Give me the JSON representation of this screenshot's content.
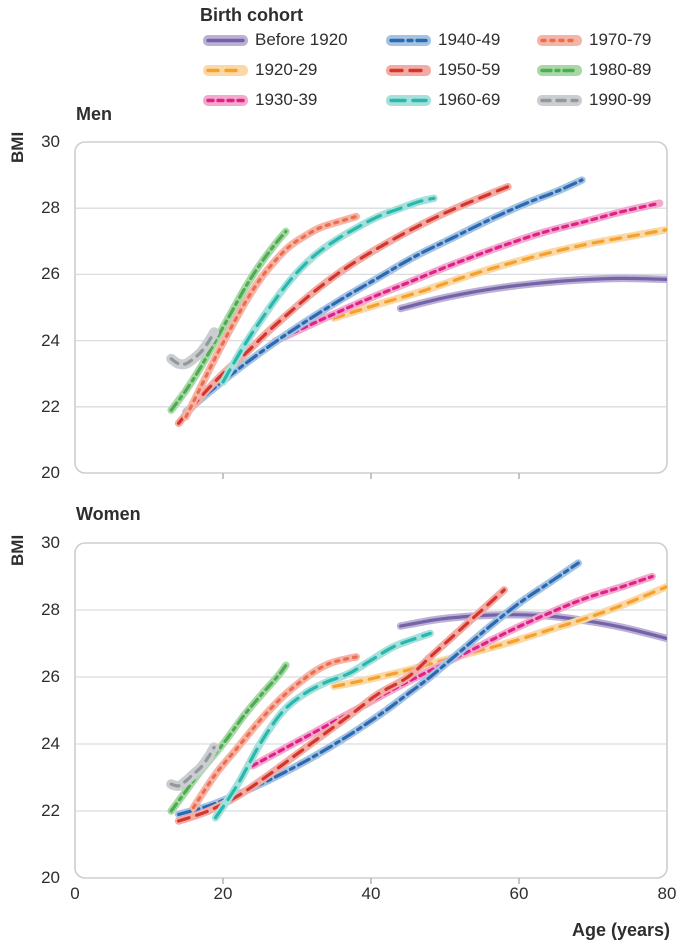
{
  "legend": {
    "title": "Birth cohort",
    "items": [
      {
        "label": "Before 1920",
        "line_color": "#7563A8",
        "band_color": "#BCB0D6",
        "dash": ""
      },
      {
        "label": "1920-29",
        "line_color": "#F6A12D",
        "band_color": "#FAD9A6",
        "dash": "10 8"
      },
      {
        "label": "1930-39",
        "line_color": "#E0218A",
        "band_color": "#F3A9CC",
        "dash": "5 5"
      },
      {
        "label": "1940-49",
        "line_color": "#2D68B1",
        "band_color": "#A3C3E2",
        "dash": "12 5 4 5"
      },
      {
        "label": "1950-59",
        "line_color": "#D7342C",
        "band_color": "#F0ACA5",
        "dash": "11 8"
      },
      {
        "label": "1960-69",
        "line_color": "#28B8AE",
        "band_color": "#A5E0DB",
        "dash": "14 8"
      },
      {
        "label": "1970-79",
        "line_color": "#EE6C4E",
        "band_color": "#F6B4A6",
        "dash": "3 6"
      },
      {
        "label": "1980-89",
        "line_color": "#4EAD50",
        "band_color": "#A9D8A8",
        "dash": "9 5 3 5"
      },
      {
        "label": "1990-99",
        "line_color": "#93989D",
        "band_color": "#CBCED1",
        "dash": "8 7"
      }
    ]
  },
  "axes": {
    "x_label": "Age (years)",
    "y_label": "BMI"
  },
  "chart_data": [
    {
      "type": "line",
      "title": "Men",
      "xlabel": "Age (years)",
      "ylabel": "BMI",
      "xlim": [
        0,
        80
      ],
      "ylim": [
        20,
        30
      ],
      "x_ticks": [
        "0",
        "20",
        "40",
        "60",
        "80"
      ],
      "y_ticks": [
        "30",
        "28",
        "26",
        "24",
        "22",
        "20"
      ],
      "grid": "horizontal",
      "legend_position": "top",
      "series": [
        {
          "name": "Before 1920",
          "points": [
            [
              44,
              24.97
            ],
            [
              50,
              25.3
            ],
            [
              56,
              25.55
            ],
            [
              62,
              25.72
            ],
            [
              68,
              25.83
            ],
            [
              74,
              25.88
            ],
            [
              80,
              25.85
            ]
          ]
        },
        {
          "name": "1920-29",
          "points": [
            [
              35,
              24.68
            ],
            [
              41,
              25.1
            ],
            [
              47,
              25.5
            ],
            [
              53,
              25.95
            ],
            [
              59,
              26.35
            ],
            [
              65,
              26.7
            ],
            [
              70,
              26.95
            ],
            [
              75,
              27.15
            ],
            [
              80,
              27.35
            ]
          ]
        },
        {
          "name": "1930-39",
          "points": [
            [
              27,
              23.98
            ],
            [
              33,
              24.6
            ],
            [
              39,
              25.2
            ],
            [
              45,
              25.75
            ],
            [
              51,
              26.3
            ],
            [
              57,
              26.8
            ],
            [
              63,
              27.25
            ],
            [
              69,
              27.6
            ],
            [
              74,
              27.9
            ],
            [
              79,
              28.15
            ]
          ]
        },
        {
          "name": "1940-49",
          "points": [
            [
              15,
              21.85
            ],
            [
              19,
              22.6
            ],
            [
              23,
              23.3
            ],
            [
              27,
              23.95
            ],
            [
              31,
              24.55
            ],
            [
              36,
              25.25
            ],
            [
              41,
              25.9
            ],
            [
              46,
              26.55
            ],
            [
              51,
              27.1
            ],
            [
              56,
              27.65
            ],
            [
              61,
              28.15
            ],
            [
              65,
              28.5
            ],
            [
              68.5,
              28.85
            ]
          ]
        },
        {
          "name": "1950-59",
          "points": [
            [
              14,
              21.5
            ],
            [
              17,
              22.3
            ],
            [
              20,
              23.0
            ],
            [
              23,
              23.6
            ],
            [
              26,
              24.25
            ],
            [
              29,
              24.85
            ],
            [
              33,
              25.6
            ],
            [
              37,
              26.25
            ],
            [
              41,
              26.8
            ],
            [
              45,
              27.3
            ],
            [
              49,
              27.75
            ],
            [
              53,
              28.15
            ],
            [
              58.5,
              28.65
            ]
          ]
        },
        {
          "name": "1960-69",
          "points": [
            [
              20,
              22.75
            ],
            [
              23,
              23.9
            ],
            [
              26,
              24.9
            ],
            [
              29,
              25.8
            ],
            [
              32,
              26.5
            ],
            [
              35,
              27.0
            ],
            [
              38,
              27.4
            ],
            [
              41,
              27.75
            ],
            [
              44,
              28.0
            ],
            [
              46.5,
              28.2
            ],
            [
              48.5,
              28.3
            ]
          ]
        },
        {
          "name": "1970-79",
          "points": [
            [
              15,
              21.7
            ],
            [
              17,
              22.6
            ],
            [
              19,
              23.5
            ],
            [
              21,
              24.35
            ],
            [
              23,
              25.15
            ],
            [
              25,
              25.85
            ],
            [
              27,
              26.4
            ],
            [
              29,
              26.85
            ],
            [
              31,
              27.15
            ],
            [
              33,
              27.4
            ],
            [
              35,
              27.55
            ],
            [
              38,
              27.75
            ]
          ]
        },
        {
          "name": "1980-89",
          "points": [
            [
              13,
              21.9
            ],
            [
              15,
              22.5
            ],
            [
              17,
              23.2
            ],
            [
              19,
              24.0
            ],
            [
              21,
              24.8
            ],
            [
              23,
              25.6
            ],
            [
              25,
              26.3
            ],
            [
              27,
              26.9
            ],
            [
              28.5,
              27.3
            ]
          ]
        },
        {
          "name": "1990-99",
          "points": [
            [
              13,
              23.45
            ],
            [
              14,
              23.3
            ],
            [
              15,
              23.3
            ],
            [
              16,
              23.45
            ],
            [
              17,
              23.65
            ],
            [
              18,
              23.95
            ],
            [
              18.8,
              24.25
            ]
          ]
        }
      ]
    },
    {
      "type": "line",
      "title": "Women",
      "xlabel": "Age (years)",
      "ylabel": "BMI",
      "xlim": [
        0,
        80
      ],
      "ylim": [
        20,
        30
      ],
      "x_ticks": [
        "0",
        "20",
        "40",
        "60",
        "80"
      ],
      "y_ticks": [
        "30",
        "28",
        "26",
        "24",
        "22",
        "20"
      ],
      "grid": "horizontal",
      "legend_position": "top",
      "series": [
        {
          "name": "Before 1920",
          "points": [
            [
              44,
              27.52
            ],
            [
              49,
              27.72
            ],
            [
              54,
              27.82
            ],
            [
              59,
              27.86
            ],
            [
              64,
              27.82
            ],
            [
              69,
              27.68
            ],
            [
              74,
              27.48
            ],
            [
              80,
              27.15
            ]
          ]
        },
        {
          "name": "1920-29",
          "points": [
            [
              35,
              25.72
            ],
            [
              39,
              25.9
            ],
            [
              44,
              26.15
            ],
            [
              49,
              26.45
            ],
            [
              54,
              26.75
            ],
            [
              59,
              27.05
            ],
            [
              64,
              27.4
            ],
            [
              69,
              27.75
            ],
            [
              74,
              28.15
            ],
            [
              80,
              28.7
            ]
          ]
        },
        {
          "name": "1930-39",
          "points": [
            [
              24,
              23.35
            ],
            [
              29,
              23.95
            ],
            [
              34,
              24.55
            ],
            [
              39,
              25.15
            ],
            [
              44,
              25.75
            ],
            [
              49,
              26.3
            ],
            [
              54,
              26.85
            ],
            [
              59,
              27.4
            ],
            [
              64,
              27.9
            ],
            [
              69,
              28.35
            ],
            [
              74,
              28.7
            ],
            [
              78,
              29.0
            ]
          ]
        },
        {
          "name": "1940-49",
          "points": [
            [
              14,
              21.9
            ],
            [
              18,
              22.15
            ],
            [
              22,
              22.5
            ],
            [
              26,
              22.9
            ],
            [
              30,
              23.35
            ],
            [
              34,
              23.85
            ],
            [
              38,
              24.4
            ],
            [
              42,
              25.0
            ],
            [
              45,
              25.5
            ],
            [
              48,
              26.0
            ],
            [
              52,
              26.75
            ],
            [
              56,
              27.5
            ],
            [
              60,
              28.2
            ],
            [
              64,
              28.8
            ],
            [
              68,
              29.4
            ]
          ]
        },
        {
          "name": "1950-59",
          "points": [
            [
              14,
              21.7
            ],
            [
              18,
              22.0
            ],
            [
              22,
              22.45
            ],
            [
              26,
              23.05
            ],
            [
              30,
              23.7
            ],
            [
              34,
              24.35
            ],
            [
              38,
              25.0
            ],
            [
              41,
              25.5
            ],
            [
              45,
              26.0
            ],
            [
              48,
              26.6
            ],
            [
              51,
              27.2
            ],
            [
              54,
              27.8
            ],
            [
              58,
              28.6
            ]
          ]
        },
        {
          "name": "1960-69",
          "points": [
            [
              19,
              21.8
            ],
            [
              22,
              22.8
            ],
            [
              25,
              24.0
            ],
            [
              28,
              24.95
            ],
            [
              31,
              25.5
            ],
            [
              34,
              25.85
            ],
            [
              37,
              26.1
            ],
            [
              40,
              26.5
            ],
            [
              43,
              26.9
            ],
            [
              46,
              27.15
            ],
            [
              48,
              27.3
            ]
          ]
        },
        {
          "name": "1970-79",
          "points": [
            [
              16,
              22.1
            ],
            [
              19,
              23.1
            ],
            [
              22,
              23.9
            ],
            [
              25,
              24.7
            ],
            [
              28,
              25.4
            ],
            [
              31,
              25.95
            ],
            [
              33,
              26.25
            ],
            [
              35,
              26.45
            ],
            [
              38,
              26.6
            ]
          ]
        },
        {
          "name": "1980-89",
          "points": [
            [
              13,
              22.0
            ],
            [
              15,
              22.6
            ],
            [
              17,
              23.2
            ],
            [
              20,
              24.0
            ],
            [
              23,
              24.9
            ],
            [
              25.5,
              25.55
            ],
            [
              27.5,
              26.05
            ],
            [
              28.5,
              26.35
            ]
          ]
        },
        {
          "name": "1990-99",
          "points": [
            [
              13,
              22.8
            ],
            [
              14,
              22.75
            ],
            [
              15,
              22.9
            ],
            [
              16,
              23.1
            ],
            [
              17,
              23.3
            ],
            [
              18,
              23.6
            ],
            [
              18.8,
              23.9
            ]
          ]
        }
      ]
    }
  ]
}
